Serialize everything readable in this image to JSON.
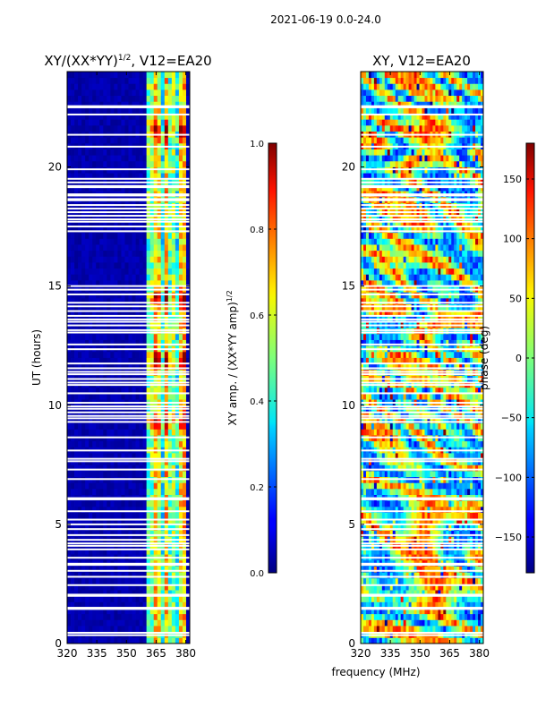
{
  "page_title": "2021-06-19 0.0-24.0",
  "chart_data": [
    {
      "type": "heatmap",
      "title": "XY/(XX*YY)",
      "title_exponent": "1/2",
      "title_suffix": ", V12=EA20",
      "xlabel": "",
      "ylabel": "UT (hours)",
      "xlim": [
        320,
        382
      ],
      "ylim": [
        0,
        24
      ],
      "xticks": [
        320,
        335,
        350,
        365,
        380
      ],
      "yticks": [
        0,
        5,
        10,
        15,
        20
      ],
      "xtick_labels": [
        "320",
        "335",
        "350",
        "365",
        "380"
      ],
      "ytick_labels": [
        "0",
        "5",
        "10",
        "15",
        "20"
      ],
      "background_value": 0.02,
      "active_band_mhz": [
        360,
        381
      ],
      "active_channels_mhz": [
        362,
        365,
        367,
        370,
        373,
        377,
        379
      ],
      "peak_hours": [
        11.9,
        9.3,
        14.5,
        21.5
      ],
      "colorbar": {
        "label": "XY amp. / (XX*YY amp)",
        "label_exponent": "1/2",
        "min": 0.0,
        "max": 1.0,
        "ticks": [
          0.0,
          0.2,
          0.4,
          0.6,
          0.8,
          1.0
        ],
        "tick_labels": [
          "0.0",
          "0.2",
          "0.4",
          "0.6",
          "0.8",
          "1.0"
        ]
      }
    },
    {
      "type": "heatmap",
      "title": "XY, V12=EA20",
      "xlabel": "frequency (MHz)",
      "ylabel": "",
      "xlim": [
        320,
        382
      ],
      "ylim": [
        0,
        24
      ],
      "xticks": [
        320,
        335,
        350,
        365,
        380
      ],
      "yticks": [
        0,
        5,
        10,
        15,
        20
      ],
      "xtick_labels": [
        "320",
        "335",
        "350",
        "365",
        "380"
      ],
      "ytick_labels": [
        "0",
        "5",
        "10",
        "15",
        "20"
      ],
      "colorbar": {
        "label": "phase (deg)",
        "min": -180,
        "max": 180,
        "ticks": [
          -150,
          -100,
          -50,
          0,
          50,
          100,
          150
        ],
        "tick_labels": [
          "−150",
          "−100",
          "−50",
          "0",
          "50",
          "100",
          "150"
        ]
      }
    }
  ],
  "flagged_hours": [
    0.35,
    0.45,
    1.45,
    1.5,
    2.0,
    2.05,
    2.45,
    2.8,
    3.05,
    3.3,
    3.35,
    3.6,
    3.95,
    4.1,
    4.2,
    4.35,
    4.55,
    4.8,
    5.0,
    5.2,
    5.55,
    6.05,
    6.1,
    6.9,
    7.3,
    7.65,
    7.75,
    8.1,
    8.65,
    9.3,
    9.45,
    9.55,
    9.7,
    9.85,
    9.95,
    10.1,
    10.5,
    10.85,
    10.95,
    11.1,
    11.3,
    11.4,
    11.55,
    11.75,
    12.35,
    12.55,
    13.05,
    13.15,
    13.35,
    13.5,
    13.6,
    13.75,
    13.95,
    14.15,
    14.3,
    14.65,
    14.85,
    15.0,
    17.3,
    17.5,
    17.7,
    17.8,
    17.95,
    18.1,
    18.25,
    18.4,
    18.6,
    18.65,
    18.8,
    18.85,
    19.15,
    19.2,
    19.35,
    19.5,
    19.9,
    20.85,
    21.35,
    22.2,
    22.5,
    22.55
  ]
}
